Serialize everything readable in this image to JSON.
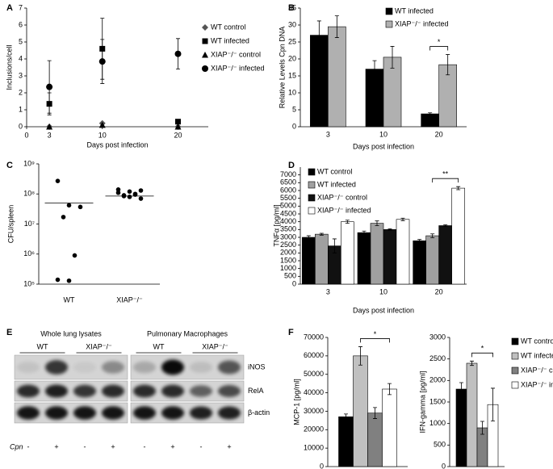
{
  "chart_data": [
    {
      "panel": "A",
      "type": "scatter",
      "y_label": "Inclusions/cell",
      "x_label": "Days post infection",
      "xlim": [
        0,
        24
      ],
      "xticks": [
        0,
        3,
        10,
        20
      ],
      "ylim": [
        0,
        7
      ],
      "yticks": [
        0,
        1,
        2,
        3,
        4,
        5,
        6,
        7
      ],
      "x": [
        3,
        10,
        20
      ],
      "series": [
        {
          "name": "WT control",
          "marker": "diamond",
          "color": "#555555",
          "values": [
            0,
            0.2,
            0
          ]
        },
        {
          "name": "WT infected",
          "marker": "square",
          "color": "#000000",
          "values": [
            1.35,
            4.6,
            0.3
          ],
          "errors": [
            0.65,
            1.8,
            0.1
          ]
        },
        {
          "name": "XIAP⁻/⁻ control",
          "marker": "triangle",
          "color": "#000000",
          "values": [
            0,
            0.1,
            0
          ]
        },
        {
          "name": "XIAP⁻/⁻ infected",
          "marker": "circle",
          "color": "#000000",
          "values": [
            2.35,
            3.85,
            4.3
          ],
          "errors": [
            1.55,
            1.3,
            0.9
          ]
        }
      ]
    },
    {
      "panel": "B",
      "type": "bar",
      "y_label": "Relative Levels Cpn DNA",
      "x_label": "Days post infection",
      "categories": [
        "3",
        "10",
        "20"
      ],
      "ylim": [
        0,
        35
      ],
      "yticks": [
        0,
        5,
        10,
        15,
        20,
        25,
        30,
        35
      ],
      "series": [
        {
          "name": "WT infected",
          "color": "#000000",
          "values": [
            27,
            17,
            3.8
          ],
          "errors": [
            4.2,
            2.5,
            0.3
          ]
        },
        {
          "name": "XIAP⁻/⁻ infected",
          "color": "#b0b0b0",
          "values": [
            29.5,
            20.5,
            18.3
          ],
          "errors": [
            3.2,
            3.2,
            3
          ]
        }
      ],
      "annotations": [
        "*"
      ]
    },
    {
      "panel": "C",
      "type": "strip",
      "y_label": "CFU/spleen",
      "log_scale": true,
      "categories": [
        "WT",
        "XIAP⁻/⁻"
      ],
      "ylim": [
        100000,
        1000000000
      ],
      "yticks": [
        {
          "value": 100000,
          "label": "10⁵"
        },
        {
          "value": 1000000,
          "label": "10⁶"
        },
        {
          "value": 10000000,
          "label": "10⁷"
        },
        {
          "value": 100000000,
          "label": "10⁸"
        },
        {
          "value": 1000000000,
          "label": "10⁹"
        }
      ],
      "values": [
        [
          270000000,
          42000000,
          37000000,
          17000000,
          900000,
          140000,
          130000
        ],
        [
          140000000,
          120000000,
          130000000,
          90000000,
          100000000,
          110000000,
          80000000,
          70000000,
          85000000,
          95000000
        ]
      ],
      "medians": [
        50000000,
        85000000
      ],
      "color": "#000000"
    },
    {
      "panel": "D",
      "type": "bar",
      "y_label": "TNFα [pg/ml]",
      "x_label": "Days post infection",
      "categories": [
        "3",
        "10",
        "20"
      ],
      "ylim": [
        0,
        7500
      ],
      "yticks": [
        0,
        500,
        1000,
        1500,
        2000,
        2500,
        3000,
        3500,
        4000,
        4500,
        5000,
        5500,
        6000,
        6500,
        7000
      ],
      "series": [
        {
          "name": "WT control",
          "color": "#000000",
          "values": [
            3000,
            3300,
            2780
          ],
          "errors": [
            100,
            100,
            80
          ]
        },
        {
          "name": "WT infected",
          "color": "#a0a0a0",
          "values": [
            3200,
            3900,
            3100
          ],
          "errors": [
            60,
            150,
            120
          ]
        },
        {
          "name": "XIAP⁻/⁻ control",
          "color": "#111111",
          "values": [
            2450,
            3500,
            3750
          ],
          "errors": [
            450,
            50,
            50
          ]
        },
        {
          "name": "XIAP⁻/⁻ infected",
          "color": "#ffffff",
          "values": [
            4000,
            4150,
            6150
          ],
          "errors": [
            100,
            80,
            100
          ]
        }
      ],
      "annotations": [
        "**"
      ]
    },
    {
      "panel": "F",
      "type": "bar",
      "y_label": "MCP-1 [pg/ml]",
      "ylim": [
        0,
        70000
      ],
      "yticks": [
        0,
        10000,
        20000,
        30000,
        40000,
        50000,
        60000,
        70000
      ],
      "series": [
        {
          "color": "#000000",
          "values": [
            27000
          ],
          "errors": [
            1500
          ]
        },
        {
          "color": "#c0c0c0",
          "values": [
            60000
          ],
          "errors": [
            5000
          ]
        },
        {
          "color": "#808080",
          "values": [
            29000
          ],
          "errors": [
            3000
          ]
        },
        {
          "color": "#ffffff",
          "values": [
            42000
          ],
          "errors": [
            3000
          ]
        }
      ],
      "annotations": [
        "*"
      ]
    },
    {
      "type": "bar",
      "y_label": "IFN-gamma [pg/ml]",
      "ylim": [
        0,
        3000
      ],
      "yticks": [
        0,
        500,
        1000,
        1500,
        2000,
        2500,
        3000
      ],
      "series": [
        {
          "name": "WT control",
          "color": "#000000",
          "values": [
            1800
          ],
          "errors": [
            150
          ]
        },
        {
          "name": "WT infected",
          "color": "#c0c0c0",
          "values": [
            2400
          ],
          "errors": [
            50
          ]
        },
        {
          "name": "XIAP⁻/⁻ control",
          "color": "#808080",
          "values": [
            900
          ],
          "errors": [
            150
          ]
        },
        {
          "name": "XIAP⁻/⁻ infected",
          "color": "#ffffff",
          "values": [
            1440
          ],
          "errors": [
            380
          ]
        }
      ],
      "annotations": [
        "*"
      ]
    }
  ],
  "blot": {
    "panel": "E",
    "groups": [
      "Whole lung lysates",
      "Pulmonary Macrophages"
    ],
    "genotypes": [
      "WT",
      "XIAP⁻/⁻",
      "WT",
      "XIAP⁻/⁻"
    ],
    "rows": [
      "iNOS",
      "RelA",
      "β-actin"
    ],
    "treatment_label": "Cpn",
    "treatment": [
      "-",
      "+",
      "-",
      "+",
      "-",
      "+",
      "-",
      "+"
    ]
  }
}
